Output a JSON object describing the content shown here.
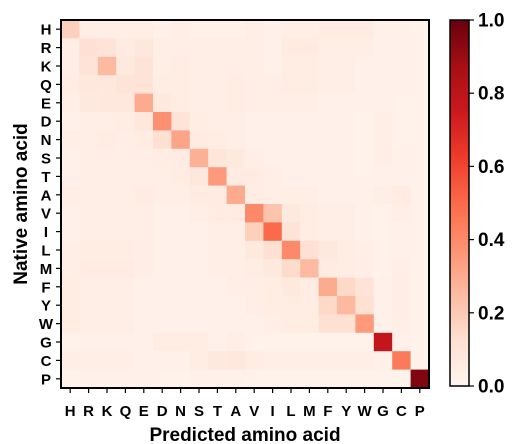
{
  "chart_data": {
    "type": "heatmap",
    "title": "",
    "xlabel": "Predicted amino acid",
    "ylabel": "Native amino acid",
    "x_categories": [
      "H",
      "R",
      "K",
      "Q",
      "E",
      "D",
      "N",
      "S",
      "T",
      "A",
      "V",
      "I",
      "L",
      "M",
      "F",
      "Y",
      "W",
      "G",
      "C",
      "P"
    ],
    "y_categories": [
      "H",
      "R",
      "K",
      "Q",
      "E",
      "D",
      "N",
      "S",
      "T",
      "A",
      "V",
      "I",
      "L",
      "M",
      "F",
      "Y",
      "W",
      "G",
      "C",
      "P"
    ],
    "colormap": "Reds",
    "color_range": [
      0.0,
      1.0
    ],
    "colorbar_ticks": [
      "0.0",
      "0.2",
      "0.4",
      "0.6",
      "0.8",
      "1.0"
    ],
    "values": [
      [
        0.18,
        0.04,
        0.04,
        0.04,
        0.04,
        0.03,
        0.04,
        0.03,
        0.03,
        0.03,
        0.04,
        0.03,
        0.04,
        0.04,
        0.06,
        0.06,
        0.06,
        0.03,
        0.03,
        0.02
      ],
      [
        0.04,
        0.12,
        0.1,
        0.06,
        0.08,
        0.04,
        0.04,
        0.04,
        0.04,
        0.04,
        0.04,
        0.03,
        0.06,
        0.06,
        0.04,
        0.04,
        0.04,
        0.03,
        0.03,
        0.02
      ],
      [
        0.04,
        0.1,
        0.25,
        0.07,
        0.1,
        0.04,
        0.05,
        0.04,
        0.04,
        0.04,
        0.04,
        0.03,
        0.05,
        0.05,
        0.04,
        0.04,
        0.03,
        0.03,
        0.03,
        0.02
      ],
      [
        0.05,
        0.08,
        0.08,
        0.1,
        0.11,
        0.05,
        0.05,
        0.04,
        0.04,
        0.05,
        0.04,
        0.04,
        0.05,
        0.05,
        0.04,
        0.04,
        0.03,
        0.03,
        0.03,
        0.02
      ],
      [
        0.04,
        0.07,
        0.08,
        0.08,
        0.3,
        0.07,
        0.05,
        0.04,
        0.04,
        0.05,
        0.04,
        0.04,
        0.04,
        0.04,
        0.03,
        0.03,
        0.03,
        0.03,
        0.02,
        0.02
      ],
      [
        0.03,
        0.04,
        0.04,
        0.05,
        0.08,
        0.38,
        0.1,
        0.05,
        0.04,
        0.04,
        0.03,
        0.03,
        0.03,
        0.03,
        0.03,
        0.03,
        0.02,
        0.04,
        0.02,
        0.02
      ],
      [
        0.04,
        0.04,
        0.05,
        0.04,
        0.05,
        0.12,
        0.32,
        0.06,
        0.05,
        0.04,
        0.03,
        0.03,
        0.03,
        0.03,
        0.03,
        0.03,
        0.02,
        0.04,
        0.02,
        0.02
      ],
      [
        0.03,
        0.04,
        0.04,
        0.04,
        0.04,
        0.05,
        0.06,
        0.28,
        0.09,
        0.07,
        0.04,
        0.03,
        0.03,
        0.03,
        0.03,
        0.03,
        0.02,
        0.04,
        0.03,
        0.02
      ],
      [
        0.03,
        0.04,
        0.04,
        0.04,
        0.04,
        0.04,
        0.05,
        0.08,
        0.35,
        0.06,
        0.06,
        0.04,
        0.03,
        0.03,
        0.03,
        0.03,
        0.02,
        0.03,
        0.03,
        0.02
      ],
      [
        0.04,
        0.04,
        0.04,
        0.04,
        0.06,
        0.04,
        0.04,
        0.06,
        0.06,
        0.3,
        0.05,
        0.04,
        0.04,
        0.04,
        0.03,
        0.03,
        0.03,
        0.04,
        0.06,
        0.02
      ],
      [
        0.03,
        0.04,
        0.04,
        0.04,
        0.04,
        0.03,
        0.03,
        0.04,
        0.06,
        0.06,
        0.4,
        0.22,
        0.07,
        0.05,
        0.04,
        0.04,
        0.03,
        0.02,
        0.04,
        0.02
      ],
      [
        0.03,
        0.04,
        0.04,
        0.04,
        0.04,
        0.03,
        0.03,
        0.03,
        0.04,
        0.04,
        0.18,
        0.5,
        0.1,
        0.05,
        0.04,
        0.04,
        0.03,
        0.02,
        0.03,
        0.02
      ],
      [
        0.04,
        0.05,
        0.05,
        0.05,
        0.04,
        0.03,
        0.03,
        0.03,
        0.04,
        0.04,
        0.07,
        0.12,
        0.4,
        0.12,
        0.07,
        0.05,
        0.04,
        0.02,
        0.03,
        0.02
      ],
      [
        0.04,
        0.06,
        0.06,
        0.06,
        0.04,
        0.03,
        0.03,
        0.03,
        0.04,
        0.04,
        0.05,
        0.07,
        0.14,
        0.25,
        0.06,
        0.05,
        0.04,
        0.02,
        0.04,
        0.02
      ],
      [
        0.05,
        0.04,
        0.04,
        0.04,
        0.03,
        0.03,
        0.03,
        0.03,
        0.03,
        0.04,
        0.04,
        0.05,
        0.07,
        0.05,
        0.3,
        0.15,
        0.1,
        0.03,
        0.04,
        0.02
      ],
      [
        0.05,
        0.04,
        0.04,
        0.04,
        0.03,
        0.03,
        0.03,
        0.03,
        0.03,
        0.03,
        0.04,
        0.05,
        0.05,
        0.05,
        0.15,
        0.25,
        0.12,
        0.03,
        0.04,
        0.02
      ],
      [
        0.05,
        0.04,
        0.04,
        0.04,
        0.03,
        0.03,
        0.03,
        0.03,
        0.03,
        0.03,
        0.03,
        0.04,
        0.05,
        0.05,
        0.12,
        0.12,
        0.35,
        0.03,
        0.04,
        0.02
      ],
      [
        0.02,
        0.03,
        0.03,
        0.03,
        0.03,
        0.05,
        0.05,
        0.05,
        0.03,
        0.04,
        0.02,
        0.02,
        0.02,
        0.02,
        0.02,
        0.02,
        0.02,
        0.78,
        0.03,
        0.02
      ],
      [
        0.04,
        0.04,
        0.04,
        0.04,
        0.03,
        0.03,
        0.03,
        0.05,
        0.07,
        0.08,
        0.05,
        0.04,
        0.04,
        0.04,
        0.04,
        0.04,
        0.04,
        0.03,
        0.45,
        0.02
      ],
      [
        0.02,
        0.03,
        0.03,
        0.03,
        0.03,
        0.02,
        0.02,
        0.03,
        0.03,
        0.03,
        0.02,
        0.02,
        0.02,
        0.02,
        0.02,
        0.02,
        0.02,
        0.02,
        0.02,
        0.95
      ]
    ]
  }
}
